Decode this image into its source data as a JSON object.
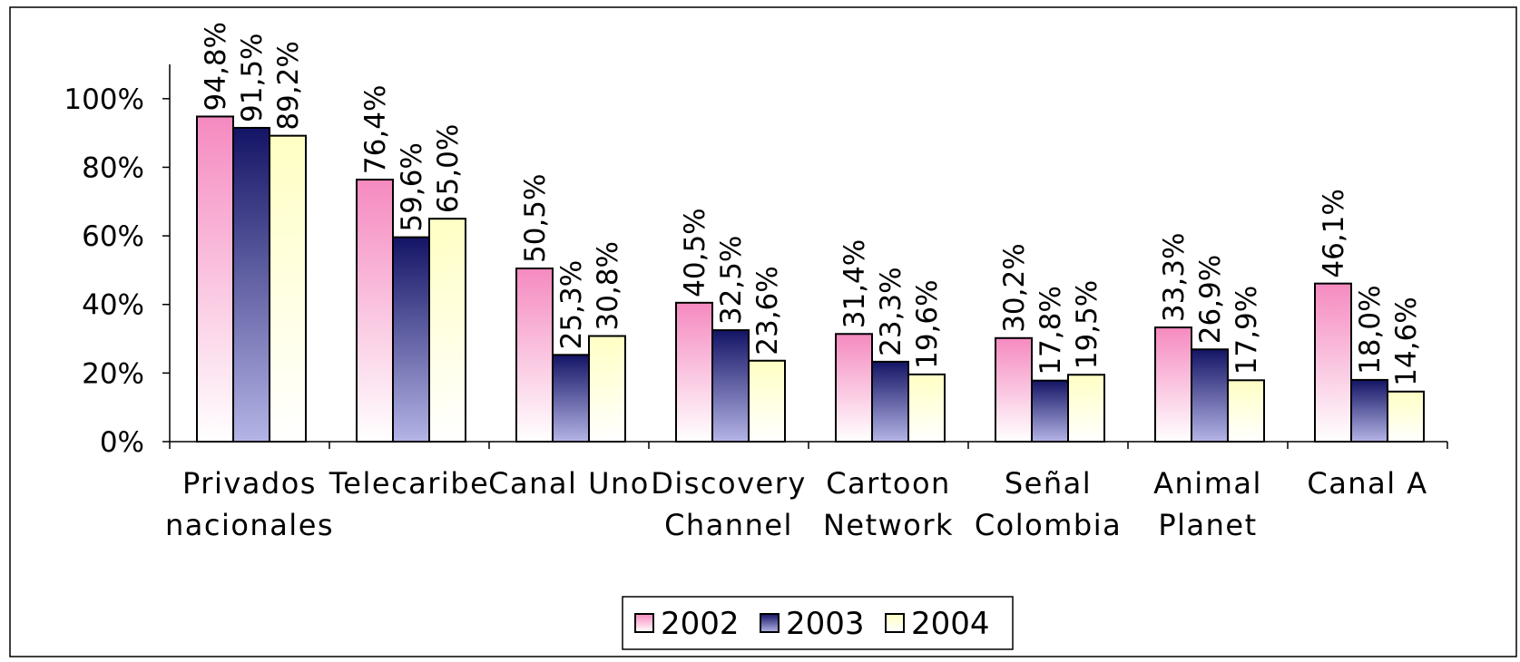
{
  "chart_data": {
    "type": "bar",
    "categories": [
      "Privados\nnacionales",
      "Telecaribe",
      "Canal Uno",
      "Discovery\nChannel",
      "Cartoon\nNetwork",
      "Señal\nColombia",
      "Animal\nPlanet",
      "Canal A"
    ],
    "series": [
      {
        "name": "2002",
        "color": "#f58ac0",
        "values": [
          94.8,
          76.4,
          50.5,
          40.5,
          31.4,
          30.2,
          33.3,
          46.1
        ],
        "value_labels": [
          "94,8%",
          "76,4%",
          "50,5%",
          "40,5%",
          "31,4%",
          "30,2%",
          "33,3%",
          "46,1%"
        ]
      },
      {
        "name": "2003",
        "color": "#141466",
        "values": [
          91.5,
          59.6,
          25.3,
          32.5,
          23.3,
          17.8,
          26.9,
          18.0
        ],
        "value_labels": [
          "91,5%",
          "59,6%",
          "25,3%",
          "32,5%",
          "23,3%",
          "17,8%",
          "26,9%",
          "18,0%"
        ]
      },
      {
        "name": "2004",
        "color": "#ffffc4",
        "values": [
          89.2,
          65.0,
          30.8,
          23.6,
          19.6,
          19.5,
          17.9,
          14.6
        ],
        "value_labels": [
          "89,2%",
          "65,0%",
          "30,8%",
          "23,6%",
          "19,6%",
          "19,5%",
          "17,9%",
          "14,6%"
        ]
      }
    ],
    "ylim": [
      0,
      110
    ],
    "yticks": [
      {
        "value": 0,
        "label": "0%"
      },
      {
        "value": 20,
        "label": "20%"
      },
      {
        "value": 40,
        "label": "40%"
      },
      {
        "value": 60,
        "label": "60%"
      },
      {
        "value": 80,
        "label": "80%"
      },
      {
        "value": 100,
        "label": "100%"
      }
    ],
    "grid": false,
    "legend": "bottom"
  }
}
